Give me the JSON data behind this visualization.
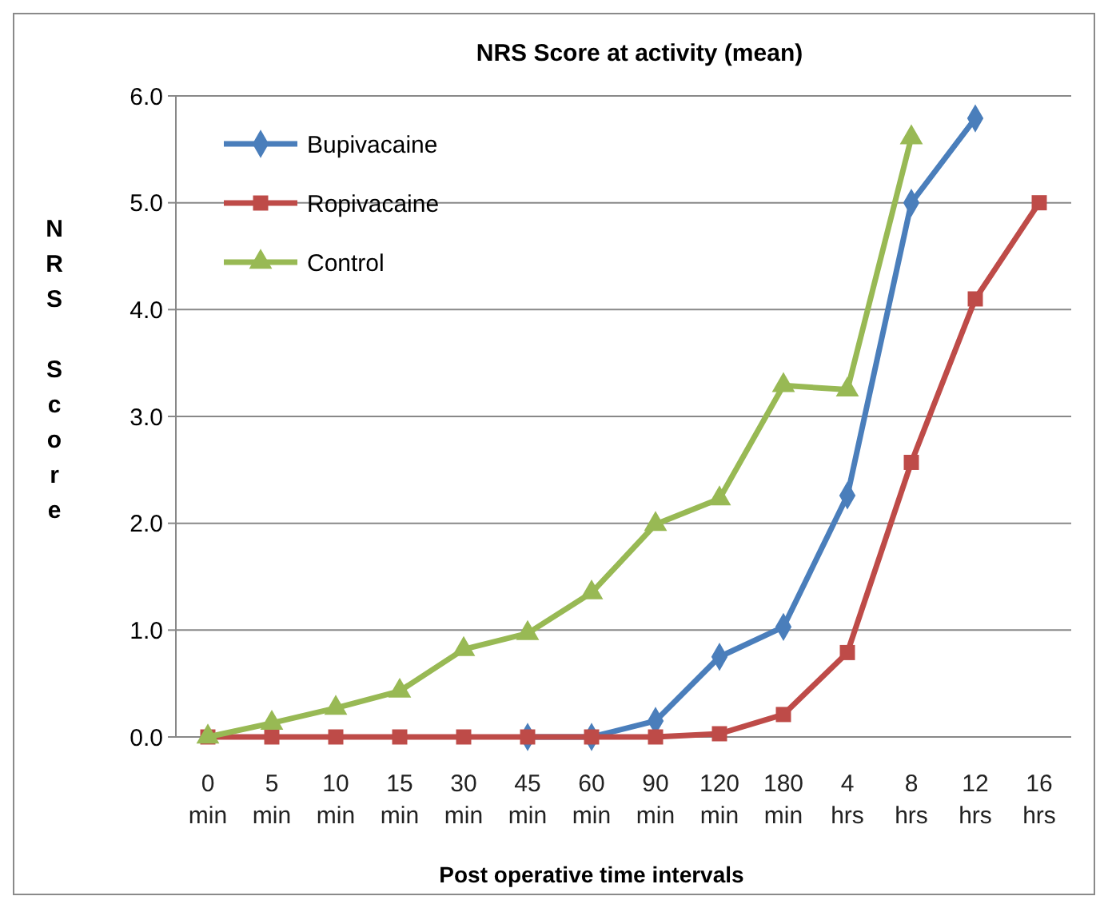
{
  "chart_data": {
    "type": "line",
    "title": "NRS Score at activity (mean)",
    "xlabel": "Post operative time intervals",
    "ylabel": "NRS Score",
    "categories": [
      "0 min",
      "5 min",
      "10 min",
      "15 min",
      "30 min",
      "45 min",
      "60 min",
      "90 min",
      "120 min",
      "180 min",
      "4 hrs",
      "8 hrs",
      "12 hrs",
      "16 hrs"
    ],
    "series": [
      {
        "name": "Bupivacaine",
        "color": "#4a7ebb",
        "marker": "diamond",
        "values": [
          null,
          null,
          null,
          null,
          null,
          0,
          0,
          0.15,
          0.75,
          1.03,
          2.26,
          5.0,
          5.79,
          null
        ]
      },
      {
        "name": "Ropivacaine",
        "color": "#be4b48",
        "marker": "square",
        "values": [
          0,
          0,
          0,
          0,
          0,
          0,
          0,
          0,
          0.03,
          0.21,
          0.79,
          2.57,
          4.1,
          5.0
        ]
      },
      {
        "name": "Control",
        "color": "#98b954",
        "marker": "triangle",
        "values": [
          0,
          0.13,
          0.27,
          0.43,
          0.82,
          0.97,
          1.35,
          1.99,
          2.23,
          3.29,
          3.25,
          5.61,
          null,
          null
        ]
      }
    ],
    "ylim": [
      0,
      6
    ],
    "yticks": [
      {
        "value": 0,
        "label": "0.0"
      },
      {
        "value": 1,
        "label": "1.0"
      },
      {
        "value": 2,
        "label": "2.0"
      },
      {
        "value": 3,
        "label": "3.0"
      },
      {
        "value": 4,
        "label": "4.0"
      },
      {
        "value": 5,
        "label": "5.0"
      },
      {
        "value": 6,
        "label": "6.0"
      }
    ],
    "grid": "y",
    "legend": "top left"
  }
}
